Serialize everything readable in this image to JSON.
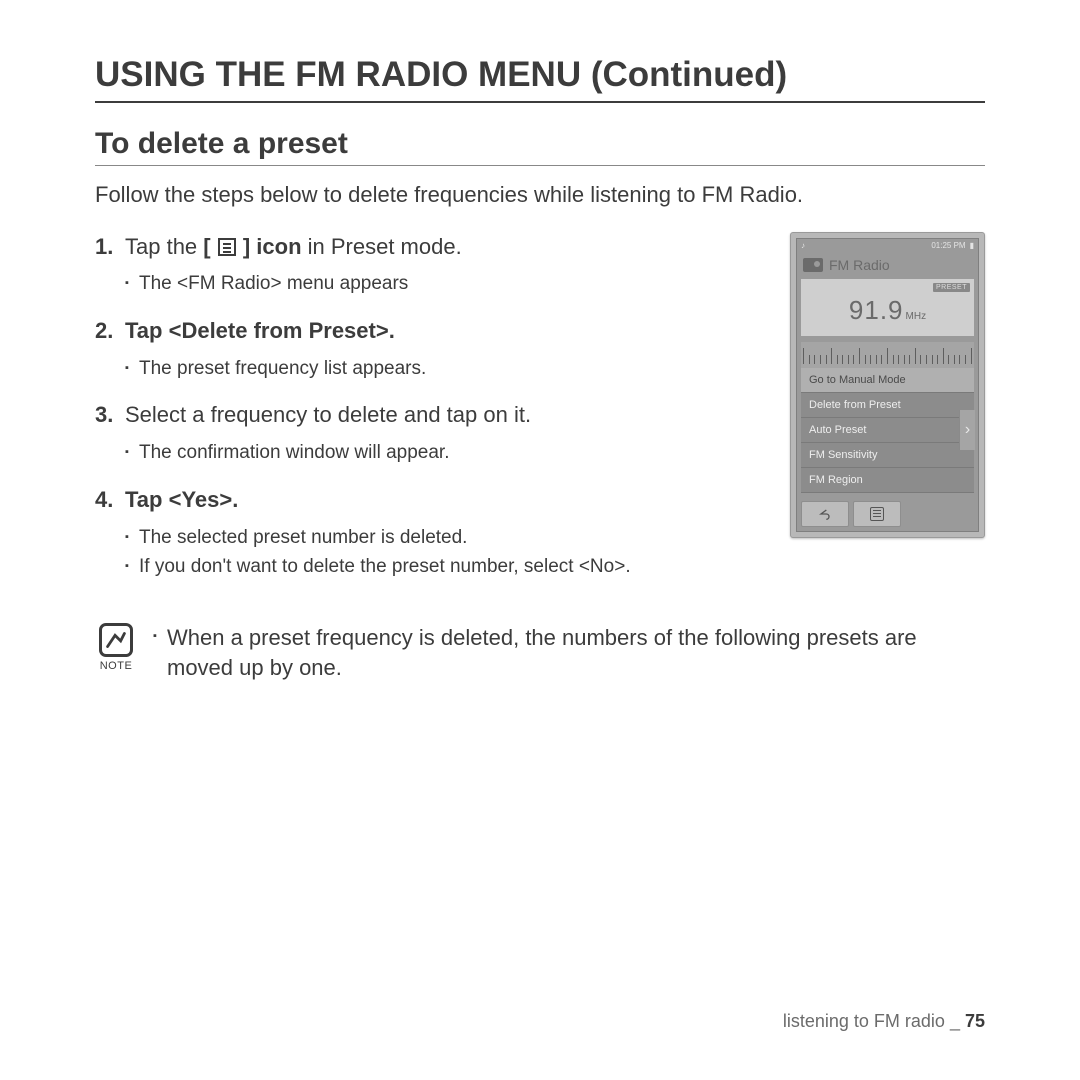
{
  "title": "USING THE FM RADIO MENU (Continued)",
  "subtitle": "To delete a preset",
  "intro": "Follow the steps below to delete frequencies while listening to FM Radio.",
  "steps": [
    {
      "prefix": "Tap the ",
      "iconBold": true,
      "boldAfterIcon": " icon",
      "suffix": " in Preset mode.",
      "subs": [
        "The <FM Radio> menu appears"
      ]
    },
    {
      "boldFull": "Tap <Delete from Preset>.",
      "subs": [
        "The preset frequency list appears."
      ]
    },
    {
      "plain": "Select a frequency to delete and tap on it.",
      "subs": [
        "The confirmation window will appear."
      ]
    },
    {
      "boldFull": "Tap <Yes>.",
      "subs": [
        "The selected preset number is deleted.",
        "If you don't want to delete the preset number, select <No>."
      ]
    }
  ],
  "noteLabel": "NOTE",
  "noteText": "When a preset frequency is deleted, the numbers of the following presets are moved up by one.",
  "device": {
    "time": "01:25 PM",
    "appTitle": "FM Radio",
    "presetBadge": "PRESET",
    "frequency": "91.9",
    "unit": "MHz",
    "menu": [
      {
        "label": "Go to Manual Mode",
        "selected": true
      },
      {
        "label": "Delete from Preset",
        "selected": false
      },
      {
        "label": "Auto Preset",
        "selected": false
      },
      {
        "label": "FM Sensitivity",
        "selected": false
      },
      {
        "label": "FM Region",
        "selected": false
      }
    ]
  },
  "footer": {
    "text": "listening to FM radio _ ",
    "page": "75"
  }
}
